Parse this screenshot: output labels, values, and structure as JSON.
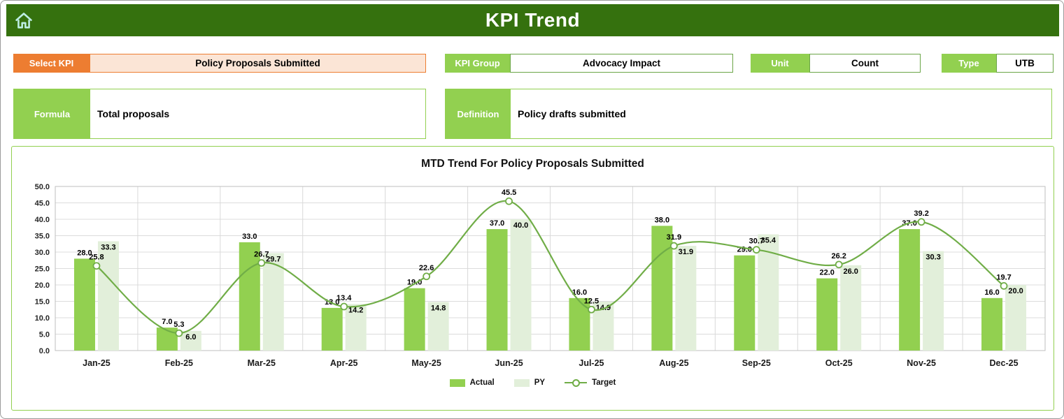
{
  "page": {
    "title": "KPI Trend"
  },
  "icons": {
    "home": "home-icon"
  },
  "colors": {
    "header_green": "#35710e",
    "accent_green": "#92d050",
    "line_green": "#70ad47",
    "py_green": "#e2efda",
    "accent_orange": "#ed7d31",
    "peach": "#fbe5d6"
  },
  "filters": {
    "select_kpi": {
      "label": "Select KPI",
      "value": "Policy Proposals Submitted"
    },
    "kpi_group": {
      "label": "KPI Group",
      "value": "Advocacy Impact"
    },
    "unit": {
      "label": "Unit",
      "value": "Count"
    },
    "type": {
      "label": "Type",
      "value": "UTB"
    }
  },
  "details": {
    "formula": {
      "label": "Formula",
      "value": "Total proposals"
    },
    "definition": {
      "label": "Definition",
      "value": "Policy drafts submitted"
    }
  },
  "chart_data": {
    "type": "bar",
    "subtype": "grouped-bars-with-smooth-line",
    "title": "MTD Trend For Policy Proposals Submitted",
    "categories": [
      "Jan-25",
      "Feb-25",
      "Mar-25",
      "Apr-25",
      "May-25",
      "Jun-25",
      "Jul-25",
      "Aug-25",
      "Sep-25",
      "Oct-25",
      "Nov-25",
      "Dec-25"
    ],
    "series": [
      {
        "name": "Actual",
        "type": "bar",
        "color": "#92d050",
        "values": [
          28.0,
          7.0,
          33.0,
          13.0,
          19.0,
          37.0,
          16.0,
          38.0,
          29.0,
          22.0,
          37.0,
          16.0
        ]
      },
      {
        "name": "PY",
        "type": "bar",
        "color": "#e2efda",
        "values": [
          33.3,
          6.0,
          29.7,
          14.2,
          14.8,
          40.0,
          14.9,
          31.9,
          35.4,
          26.0,
          30.3,
          20.0
        ]
      },
      {
        "name": "Target",
        "type": "line",
        "color": "#70ad47",
        "values": [
          25.8,
          5.3,
          26.7,
          13.4,
          22.6,
          45.5,
          12.5,
          31.9,
          30.7,
          26.2,
          39.2,
          19.7
        ]
      }
    ],
    "xlabel": "",
    "ylabel": "",
    "ylim": [
      0,
      50
    ],
    "ytick_step": 5,
    "grid": true,
    "legend_position": "bottom"
  }
}
